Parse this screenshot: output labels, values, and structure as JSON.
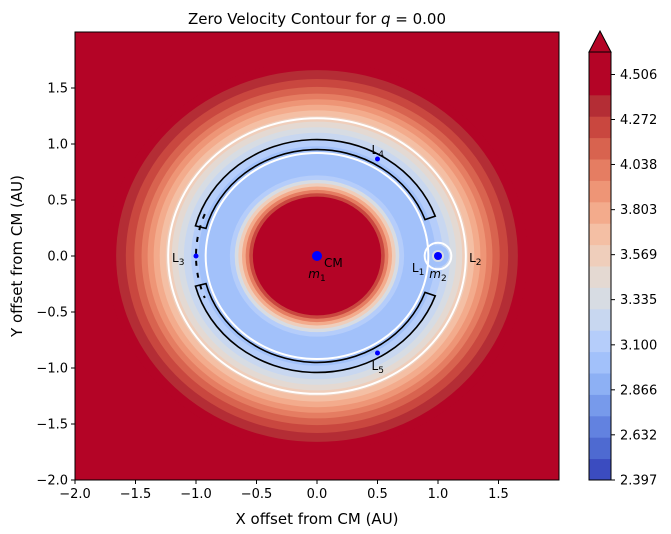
{
  "chart_data": {
    "type": "heatmap",
    "title": "Zero Velocity Contour for q = 0.00",
    "title_prefix": "Zero Velocity Contour for ",
    "title_var": "q",
    "title_value": " = 0.00",
    "xlabel": "X offset from CM (AU)",
    "ylabel": "Y offset from CM (AU)",
    "xlim": [
      -2.0,
      2.0
    ],
    "ylim": [
      -2.0,
      2.0
    ],
    "x_ticks": [
      -2.0,
      -1.5,
      -1.0,
      -0.5,
      0.0,
      0.5,
      1.0,
      1.5
    ],
    "x_tick_labels": [
      "−2.0",
      "−1.5",
      "−1.0",
      "−0.5",
      "0.0",
      "0.5",
      "1.0",
      "1.5"
    ],
    "y_ticks": [
      -2.0,
      -1.5,
      -1.0,
      -0.5,
      0.0,
      0.5,
      1.0,
      1.5
    ],
    "y_tick_labels": [
      "−2.0",
      "−1.5",
      "−1.0",
      "−0.5",
      "0.0",
      "0.5",
      "1.0",
      "1.5"
    ],
    "colorbar": {
      "min": 2.397,
      "max": 4.623,
      "levels": 20,
      "extend": "max",
      "ticks": [
        2.397,
        2.632,
        2.866,
        3.1,
        3.335,
        3.569,
        3.803,
        4.038,
        4.272,
        4.506
      ],
      "tick_labels": [
        "2.397",
        "2.632",
        "2.866",
        "3.100",
        "3.335",
        "3.569",
        "3.803",
        "4.038",
        "4.272",
        "4.506"
      ],
      "colors": [
        "#3b4cc0",
        "#4e6ad1",
        "#6282e0",
        "#779aeb",
        "#8db0f4",
        "#a2c1fa",
        "#b5cdfa",
        "#c8d7f0",
        "#d7dce3",
        "#e4d9d2",
        "#efcebb",
        "#f4bfa4",
        "#f3ab8c",
        "#ee9576",
        "#e57d62",
        "#d8634f",
        "#c9473f",
        "#b42d35",
        "#b40426",
        "#b40426"
      ],
      "over_color": "#b40426"
    },
    "points": [
      {
        "name": "CM",
        "label": "CM",
        "x": 0.0,
        "y": 0.0,
        "color": "#0000ff"
      },
      {
        "name": "m1",
        "label": "m",
        "sub": "1",
        "x": 0.0,
        "y": 0.0
      },
      {
        "name": "m2",
        "label": "m",
        "sub": "2",
        "x": 1.0,
        "y": 0.0,
        "color": "#0000ff"
      },
      {
        "name": "L1",
        "label": "L",
        "sub": "1",
        "x": 0.9,
        "y": 0.0
      },
      {
        "name": "L2",
        "label": "L",
        "sub": "2",
        "x": 1.1,
        "y": 0.0
      },
      {
        "name": "L3",
        "label": "L",
        "sub": "3",
        "x": -1.0,
        "y": 0.0,
        "color": "#0000ff"
      },
      {
        "name": "L4",
        "label": "L",
        "sub": "4",
        "x": 0.5,
        "y": 0.866,
        "color": "#0000ff"
      },
      {
        "name": "L5",
        "label": "L",
        "sub": "5",
        "x": 0.5,
        "y": -0.866,
        "color": "#0000ff"
      }
    ]
  }
}
